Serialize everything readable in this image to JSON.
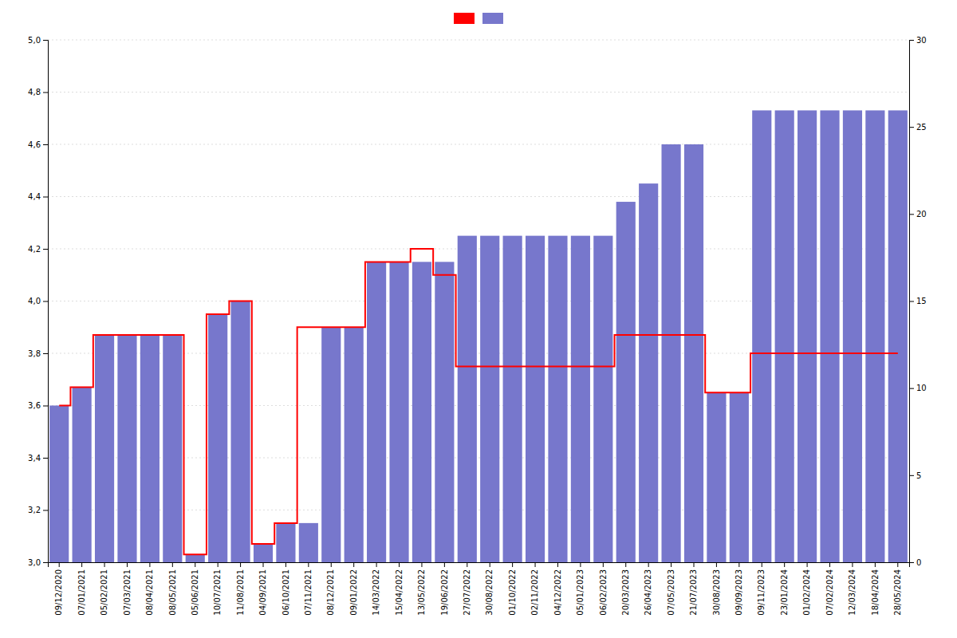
{
  "chart_data": {
    "type": "bar",
    "categories": [
      "09/12/2020",
      "07/01/2021",
      "05/02/2021",
      "07/03/2021",
      "08/04/2021",
      "08/05/2021",
      "05/06/2021",
      "10/07/2021",
      "11/08/2021",
      "04/09/2021",
      "06/10/2021",
      "07/11/2021",
      "08/12/2021",
      "09/01/2022",
      "14/03/2022",
      "15/04/2022",
      "13/05/2022",
      "19/06/2022",
      "27/07/2022",
      "30/08/2022",
      "01/10/2022",
      "02/11/2022",
      "04/12/2022",
      "05/01/2023",
      "06/02/2023",
      "20/03/2023",
      "26/04/2023",
      "07/05/2023",
      "21/07/2023",
      "30/08/2023",
      "09/09/2023",
      "09/11/2023",
      "23/01/2024",
      "01/02/2024",
      "07/02/2024",
      "12/03/2024",
      "18/04/2024",
      "28/05/2024"
    ],
    "series": [
      {
        "type": "bar",
        "color": "#7777cc",
        "values": [
          3.6,
          3.67,
          3.87,
          3.87,
          3.87,
          3.87,
          3.03,
          3.95,
          4.0,
          3.07,
          3.15,
          3.15,
          3.9,
          3.9,
          4.15,
          4.15,
          4.15,
          4.15,
          4.25,
          4.25,
          4.25,
          4.25,
          4.25,
          4.25,
          4.25,
          4.38,
          4.45,
          4.6,
          4.6,
          3.65,
          3.65,
          4.73,
          4.73,
          4.73,
          4.73,
          4.73,
          4.73,
          4.73
        ]
      },
      {
        "type": "line",
        "line_style": "step",
        "color": "#ff0000",
        "values": [
          3.6,
          3.67,
          3.87,
          3.87,
          3.87,
          3.87,
          3.03,
          3.95,
          4.0,
          3.07,
          3.15,
          3.9,
          3.9,
          3.9,
          4.15,
          4.15,
          4.2,
          4.1,
          3.75,
          3.75,
          3.75,
          3.75,
          3.75,
          3.75,
          3.75,
          3.87,
          3.87,
          3.87,
          3.87,
          3.65,
          3.65,
          3.8,
          3.8,
          3.8,
          3.8,
          3.8,
          3.8,
          3.8
        ]
      }
    ],
    "ylim": [
      3.0,
      5.0
    ],
    "yticks": [
      {
        "value": 3.0,
        "label": "3,0"
      },
      {
        "value": 3.2,
        "label": "3,2"
      },
      {
        "value": 3.4,
        "label": "3,4"
      },
      {
        "value": 3.6,
        "label": "3,6"
      },
      {
        "value": 3.8,
        "label": "3,8"
      },
      {
        "value": 4.0,
        "label": "4,0"
      },
      {
        "value": 4.2,
        "label": "4,2"
      },
      {
        "value": 4.4,
        "label": "4,4"
      },
      {
        "value": 4.6,
        "label": "4,6"
      },
      {
        "value": 4.8,
        "label": "4,8"
      },
      {
        "value": 5.0,
        "label": "5,0"
      }
    ],
    "y2lim": [
      0,
      30
    ],
    "y2ticks": [
      0,
      5,
      10,
      15,
      20,
      25,
      30
    ],
    "grid": true,
    "legend": "top"
  }
}
